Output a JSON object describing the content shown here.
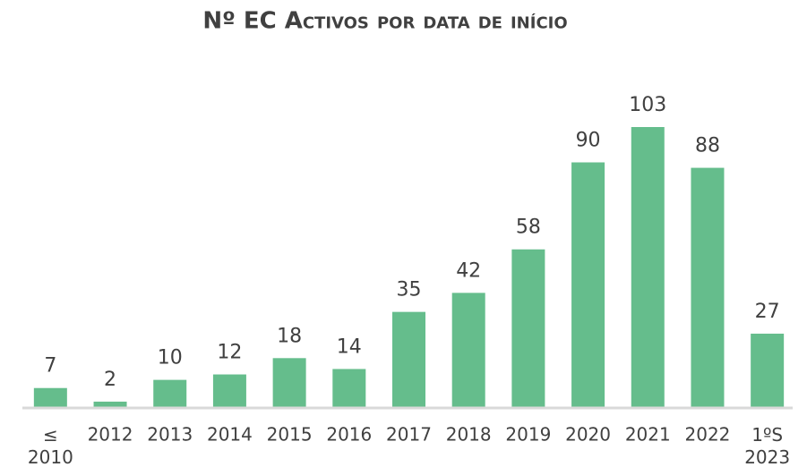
{
  "chart_data": {
    "type": "bar",
    "title": "Nº EC Activos por data de início",
    "categories": [
      "≤ 2010",
      "2012",
      "2013",
      "2014",
      "2015",
      "2016",
      "2017",
      "2018",
      "2019",
      "2020",
      "2021",
      "2022",
      "1ºS 2023"
    ],
    "values": [
      7,
      2,
      10,
      12,
      18,
      14,
      35,
      42,
      58,
      90,
      103,
      88,
      27
    ],
    "color": "#65bd8c"
  }
}
